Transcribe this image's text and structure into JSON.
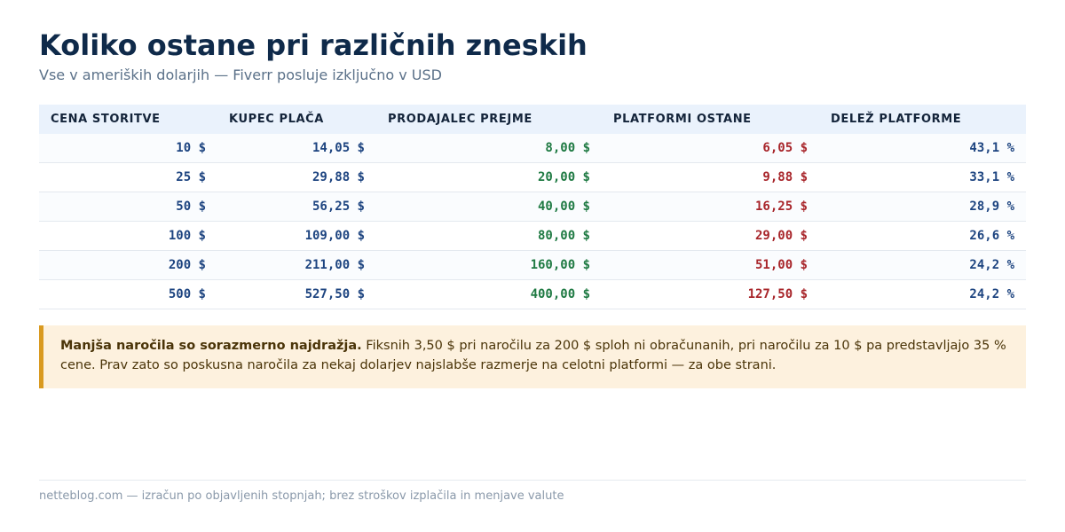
{
  "header": {
    "title": "Koliko ostane pri različnih zneskih",
    "subtitle": "Vse v ameriških dolarjih — Fiverr posluje izključno v USD"
  },
  "table": {
    "columns": [
      "CENA STORITVE",
      "KUPEC PLAČA",
      "PRODAJALEC PREJME",
      "PLATFORMI OSTANE",
      "DELEŽ PLATFORME"
    ],
    "rows": [
      [
        "10 $",
        "14,05 $",
        "8,00 $",
        "6,05 $",
        "43,1 %"
      ],
      [
        "25 $",
        "29,88 $",
        "20,00 $",
        "9,88 $",
        "33,1 %"
      ],
      [
        "50 $",
        "56,25 $",
        "40,00 $",
        "16,25 $",
        "28,9 %"
      ],
      [
        "100 $",
        "109,00 $",
        "80,00 $",
        "29,00 $",
        "26,6 %"
      ],
      [
        "200 $",
        "211,00 $",
        "160,00 $",
        "51,00 $",
        "24,2 %"
      ],
      [
        "500 $",
        "527,50 $",
        "400,00 $",
        "127,50 $",
        "24,2 %"
      ]
    ],
    "column_colors": [
      "#1d4480",
      "#1d4480",
      "#1f7a43",
      "#a8252a",
      "#1d4480"
    ]
  },
  "note": {
    "lead": "Manjša naročila so sorazmerno najdražja.",
    "text": " Fiksnih 3,50 $ pri naročilu za 200 $ sploh ni obračunanih, pri naročilu za 10 $ pa predstavljajo 35 % cene. Prav zato so poskusna naročila za nekaj dolarjev najslabše razmerje na celotni platformi — za obe strani.",
    "accent_color": "#d99a20"
  },
  "footer": {
    "text": "netteblog.com — izračun po objavljenih stopnjah; brez stroškov izplačila in menjave valute"
  }
}
